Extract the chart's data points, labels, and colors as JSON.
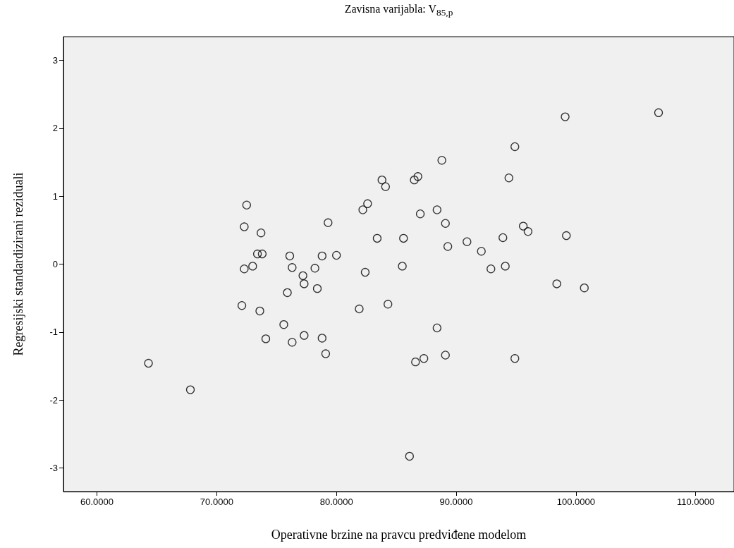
{
  "chart_data": {
    "type": "scatter",
    "title": "Zavisna varijabla: V$_{85,p}$",
    "xlabel": "Operativne brzine na pravcu predviđene modelom",
    "ylabel": "Regresijski standardizirani reziduali",
    "x": [
      64.3,
      67.8,
      72.1,
      72.3,
      72.3,
      72.5,
      73.0,
      73.4,
      73.6,
      73.7,
      73.8,
      74.1,
      75.6,
      75.9,
      76.1,
      76.3,
      76.3,
      77.2,
      77.3,
      77.3,
      78.2,
      78.4,
      78.8,
      78.8,
      79.1,
      79.3,
      80.0,
      81.9,
      82.2,
      82.4,
      82.6,
      83.4,
      83.8,
      84.1,
      84.3,
      85.5,
      85.6,
      86.1,
      86.5,
      86.8,
      86.6,
      87.0,
      87.3,
      88.4,
      88.4,
      88.8,
      89.1,
      89.1,
      89.3,
      90.9,
      92.1,
      92.9,
      93.9,
      94.1,
      94.4,
      94.9,
      94.9,
      95.6,
      96.0,
      98.4,
      99.1,
      99.2,
      100.7,
      106.9
    ],
    "values": [
      -1.46,
      -1.85,
      -0.61,
      -0.07,
      0.55,
      0.87,
      -0.03,
      0.15,
      -0.69,
      0.46,
      0.15,
      -1.1,
      -0.89,
      -0.42,
      0.12,
      -0.05,
      -1.15,
      -0.17,
      -0.29,
      -1.05,
      -0.06,
      -0.36,
      0.12,
      -1.09,
      -1.32,
      0.61,
      0.13,
      -0.66,
      0.8,
      -0.12,
      0.89,
      0.38,
      1.24,
      1.14,
      -0.59,
      -0.03,
      0.38,
      -2.83,
      1.24,
      1.29,
      -1.44,
      0.74,
      -1.39,
      0.8,
      -0.94,
      1.53,
      0.6,
      -1.34,
      0.26,
      0.33,
      0.19,
      -0.07,
      0.39,
      -0.03,
      1.27,
      1.73,
      -1.39,
      0.56,
      0.48,
      -0.29,
      2.17,
      0.42,
      -0.35,
      2.23
    ],
    "color": "#000000",
    "marker": "circle",
    "grid": false,
    "xlim": [
      57.2,
      113.2
    ],
    "xticks": [
      {
        "value": 60,
        "label": "60.0000"
      },
      {
        "value": 70,
        "label": "70.0000"
      },
      {
        "value": 80,
        "label": "80.0000"
      },
      {
        "value": 90,
        "label": "90.0000"
      },
      {
        "value": 100,
        "label": "100.0000"
      },
      {
        "value": 110,
        "label": "110.0000"
      }
    ],
    "ylim": [
      -3.35,
      3.35
    ],
    "yticks": [
      -3,
      -2,
      -1,
      0,
      1,
      2,
      3
    ]
  }
}
